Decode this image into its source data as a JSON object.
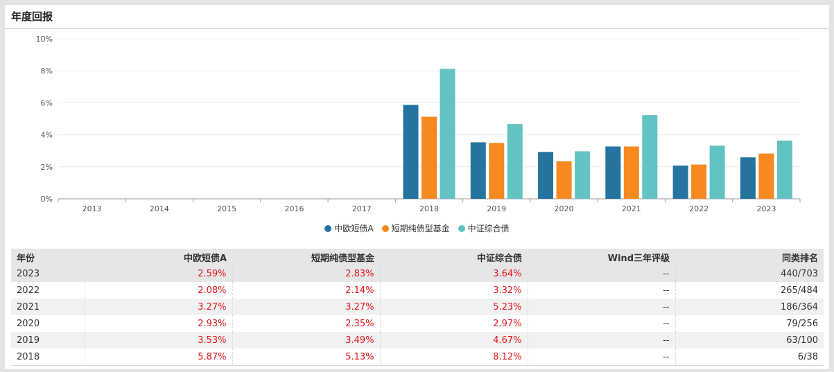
{
  "panel": {
    "title": "年度回报"
  },
  "colors": {
    "series1": "#2574a0",
    "series2": "#f6891f",
    "series3": "#63c2c2",
    "negative_text": "#e8141a"
  },
  "chart_data": {
    "type": "bar",
    "categories": [
      "2013",
      "2014",
      "2015",
      "2016",
      "2017",
      "2018",
      "2019",
      "2020",
      "2021",
      "2022",
      "2023"
    ],
    "series": [
      {
        "name": "中欧短债A",
        "values": [
          null,
          null,
          null,
          null,
          null,
          5.87,
          3.53,
          2.93,
          3.27,
          2.08,
          2.59
        ]
      },
      {
        "name": "短期纯债型基金",
        "values": [
          null,
          null,
          null,
          null,
          null,
          5.13,
          3.49,
          2.35,
          3.27,
          2.14,
          2.83
        ]
      },
      {
        "name": "中证综合债",
        "values": [
          null,
          null,
          null,
          null,
          null,
          8.12,
          4.67,
          2.97,
          5.23,
          3.32,
          3.64
        ]
      }
    ],
    "ylim": [
      0,
      10
    ],
    "yticks": [
      "0%",
      "2%",
      "4%",
      "6%",
      "8%",
      "10%"
    ],
    "ytick_values": [
      0,
      2,
      4,
      6,
      8,
      10
    ],
    "xlabel": "",
    "ylabel": "",
    "grid": true,
    "legend": "bottom-center"
  },
  "table": {
    "headers": [
      "年份",
      "中欧短债A",
      "短期纯债型基金",
      "中证综合债",
      "Wind三年评级",
      "同类排名"
    ],
    "rows": [
      [
        "2023",
        "2.59%",
        "2.83%",
        "3.64%",
        "--",
        "440/703"
      ],
      [
        "2022",
        "2.08%",
        "2.14%",
        "3.32%",
        "--",
        "265/484"
      ],
      [
        "2021",
        "3.27%",
        "3.27%",
        "5.23%",
        "--",
        "186/364"
      ],
      [
        "2020",
        "2.93%",
        "2.35%",
        "2.97%",
        "--",
        "79/256"
      ],
      [
        "2019",
        "3.53%",
        "3.49%",
        "4.67%",
        "--",
        "63/100"
      ],
      [
        "2018",
        "5.87%",
        "5.13%",
        "8.12%",
        "--",
        "6/38"
      ]
    ]
  }
}
